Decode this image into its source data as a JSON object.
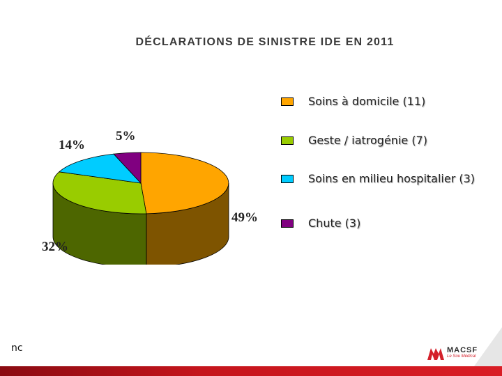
{
  "chart_data": {
    "type": "pie",
    "title": "DÉCLARATIONS DE SINISTRE  IDE  EN 2011",
    "slices": [
      {
        "name": "Soins à domicile (11)",
        "value": 49,
        "label": "49%",
        "color": "#FFA500",
        "side_color": "#7E5400"
      },
      {
        "name": "Geste / iatrogénie (7)",
        "value": 32,
        "label": "32%",
        "color": "#99CC00",
        "side_color": "#4D6600"
      },
      {
        "name": "Soins en milieu hospitalier (3)",
        "value": 14,
        "label": "14%",
        "color": "#00CCFF",
        "side_color": "#006680"
      },
      {
        "name": "Chute (3)",
        "value": 5,
        "label": "5%",
        "color": "#800080",
        "side_color": "#400040"
      }
    ],
    "legend_position": "right",
    "style": "3d-pie"
  },
  "footer": {
    "left_text": "nc",
    "logo_name": "MACSF",
    "logo_tagline": "Le Sou Médical",
    "logo_icon": "macsf-logo-icon",
    "accent_color": "#C5151C"
  }
}
